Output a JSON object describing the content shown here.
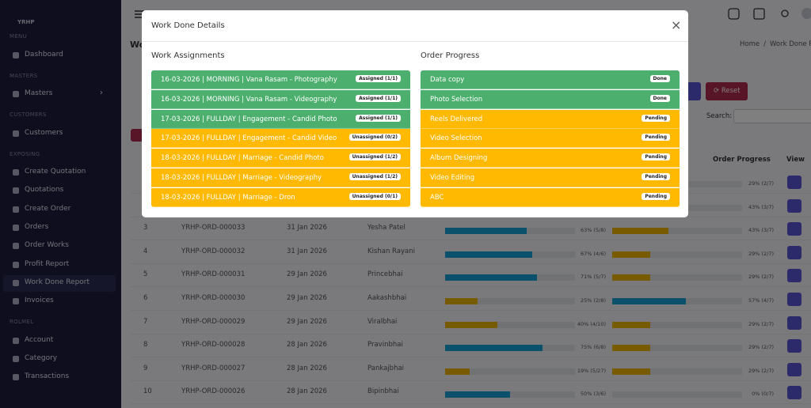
{
  "sidebar": {
    "logo": "YRHP",
    "sections": [
      {
        "heading": "MENU",
        "items": [
          "Dashboard"
        ]
      },
      {
        "heading": "MASTERS",
        "items": [
          "Masters"
        ]
      },
      {
        "heading": "CUSTOMERS",
        "items": [
          "Customers"
        ]
      },
      {
        "heading": "EXPOSING",
        "items": [
          "Create Quotation",
          "Quotations",
          "Create Order",
          "Orders",
          "Order Works",
          "Profit Report",
          "Work Done Report",
          "Invoices"
        ]
      },
      {
        "heading": "ROLMEL",
        "items": [
          "Account",
          "Category",
          "Transactions"
        ]
      }
    ]
  },
  "page": {
    "title": "Wo",
    "breadcrumb": [
      "Home",
      "/",
      "Work Done Re"
    ],
    "reset_button": "Reset",
    "search_label": "Search:",
    "table": {
      "headers": [
        "Order Progress",
        "View"
      ],
      "rows": [
        {
          "order_pct": 29,
          "order_label": "29% (2/7)",
          "order_color": "#f0b400"
        },
        {
          "order_pct": 43,
          "order_label": "43% (3/7)",
          "order_color": "#f0b400"
        },
        {
          "no": "3",
          "id": "YRHP-ORD-000033",
          "date": "31 Jan 2026",
          "customer": "Yesha Patel",
          "work_pct": 63,
          "work_label": "63% (5/8)",
          "work_color": "#17a2d8",
          "order_pct": 43,
          "order_label": "43% (3/7)",
          "order_color": "#f0b400"
        },
        {
          "no": "4",
          "id": "YRHP-ORD-000032",
          "date": "31 Jan 2026",
          "customer": "Kishan Rayani",
          "work_pct": 67,
          "work_label": "67% (4/6)",
          "work_color": "#17a2d8",
          "order_pct": 29,
          "order_label": "29% (2/7)",
          "order_color": "#f0b400"
        },
        {
          "no": "5",
          "id": "YRHP-ORD-000031",
          "date": "29 Jan 2026",
          "customer": "Princebhai",
          "work_pct": 71,
          "work_label": "71% (5/7)",
          "work_color": "#17a2d8",
          "order_pct": 29,
          "order_label": "29% (2/7)",
          "order_color": "#f0b400"
        },
        {
          "no": "6",
          "id": "YRHP-ORD-000030",
          "date": "29 Jan 2026",
          "customer": "Aakashbhai",
          "work_pct": 25,
          "work_label": "25% (2/8)",
          "work_color": "#f0b400",
          "order_pct": 57,
          "order_label": "57% (4/7)",
          "order_color": "#17a2d8"
        },
        {
          "no": "7",
          "id": "YRHP-ORD-000029",
          "date": "29 Jan 2026",
          "customer": "Viralbhai",
          "work_pct": 40,
          "work_label": "40% (4/10)",
          "work_color": "#f0b400",
          "order_pct": 29,
          "order_label": "29% (2/7)",
          "order_color": "#f0b400"
        },
        {
          "no": "8",
          "id": "YRHP-ORD-000028",
          "date": "28 Jan 2026",
          "customer": "Pravinbhai",
          "work_pct": 75,
          "work_label": "75% (6/8)",
          "work_color": "#17a2d8",
          "order_pct": 29,
          "order_label": "29% (2/7)",
          "order_color": "#f0b400"
        },
        {
          "no": "9",
          "id": "YRHP-ORD-000027",
          "date": "28 Jan 2026",
          "customer": "Pankajbhai",
          "work_pct": 19,
          "work_label": "19% (5/27)",
          "work_color": "#f0b400",
          "order_pct": 29,
          "order_label": "29% (2/7)",
          "order_color": "#f0b400"
        },
        {
          "no": "10",
          "id": "YRHP-ORD-000026",
          "date": "28 Jan 2026",
          "customer": "Bipinbhai",
          "work_pct": 50,
          "work_label": "50% (3/6)",
          "work_color": "#17a2d8",
          "order_pct": 0,
          "order_label": "0% (0/7)",
          "order_color": "#f0b400"
        }
      ]
    }
  },
  "modal": {
    "title": "Work Done Details",
    "close": "×",
    "assignments": {
      "heading": "Work Assignments",
      "items": [
        {
          "label": "16-03-2026 | MORNING | Vana Rasam - Photography",
          "badge": "Assigned (1/1)",
          "color": "#4caf6e"
        },
        {
          "label": "16-03-2026 | MORNING | Vana Rasam - Videography",
          "badge": "Assigned (1/1)",
          "color": "#4caf6e"
        },
        {
          "label": "17-03-2026 | FULLDAY | Engagement - Candid Photo",
          "badge": "Assigned (1/1)",
          "color": "#4caf6e"
        },
        {
          "label": "17-03-2026 | FULLDAY | Engagement - Candid Video",
          "badge": "Unassigned (0/2)",
          "color": "#ffb900"
        },
        {
          "label": "18-03-2026 | FULLDAY | Marriage - Candid Photo",
          "badge": "Unassigned (1/2)",
          "color": "#ffb900"
        },
        {
          "label": "18-03-2026 | FULLDAY | Marriage - Videography",
          "badge": "Unassigned (1/2)",
          "color": "#ffb900"
        },
        {
          "label": "18-03-2026 | FULLDAY | Marriage - Dron",
          "badge": "Unassigned (0/1)",
          "color": "#ffb900"
        }
      ]
    },
    "progress": {
      "heading": "Order Progress",
      "items": [
        {
          "label": "Data copy",
          "badge": "Done",
          "color": "#4caf6e"
        },
        {
          "label": "Photo Selection",
          "badge": "Done",
          "color": "#4caf6e"
        },
        {
          "label": "Reels Delivered",
          "badge": "Pending",
          "color": "#ffb900"
        },
        {
          "label": "Video Selection",
          "badge": "Pending",
          "color": "#ffb900"
        },
        {
          "label": "Album Designing",
          "badge": "Pending",
          "color": "#ffb900"
        },
        {
          "label": "Video Editing",
          "badge": "Pending",
          "color": "#ffb900"
        },
        {
          "label": "ABC",
          "badge": "Pending",
          "color": "#ffb900"
        }
      ]
    }
  }
}
